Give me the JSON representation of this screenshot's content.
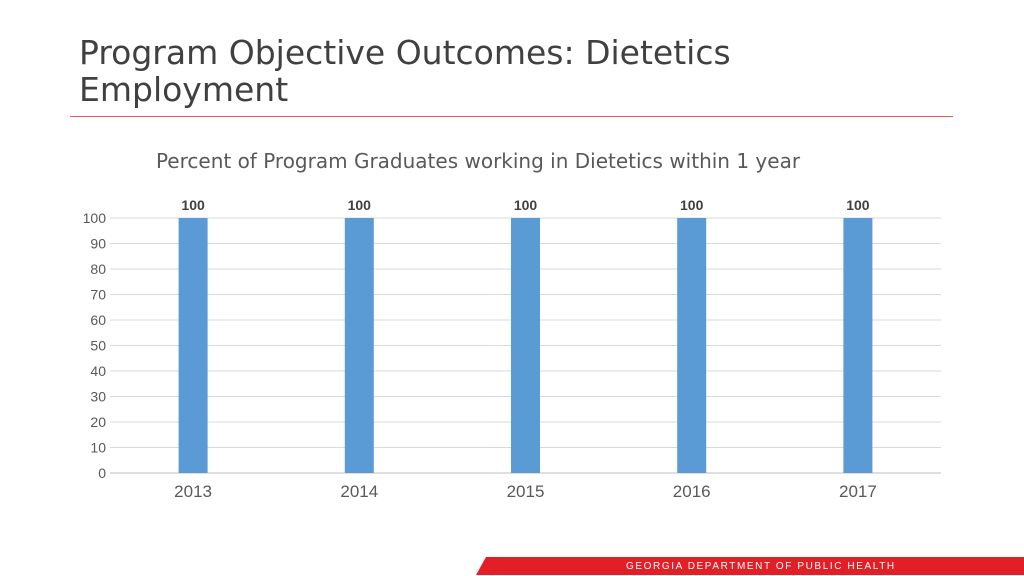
{
  "slide": {
    "title": "Program Objective Outcomes: Dietetics Employment",
    "footer": "GEORGIA DEPARTMENT OF PUBLIC HEALTH"
  },
  "colors": {
    "bar": "#5b9bd5",
    "accent": "#e21f26",
    "rule": "#e8595c"
  },
  "chart_data": {
    "type": "bar",
    "title": "Percent of Program Graduates working in Dietetics within 1 year",
    "categories": [
      "2013",
      "2014",
      "2015",
      "2016",
      "2017"
    ],
    "values": [
      100,
      100,
      100,
      100,
      100
    ],
    "data_labels": [
      "100",
      "100",
      "100",
      "100",
      "100"
    ],
    "ylim": [
      0,
      100
    ],
    "yticks": [
      0,
      10,
      20,
      30,
      40,
      50,
      60,
      70,
      80,
      90,
      100
    ],
    "grid": true,
    "legend": "none",
    "xlabel": "",
    "ylabel": ""
  }
}
